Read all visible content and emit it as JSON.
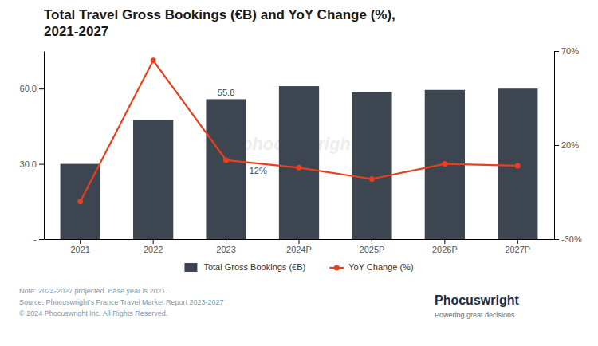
{
  "chart_data": {
    "type": "bar",
    "title": "Total Travel Gross Bookings (€B) and YoY Change (%),\n2021-2027",
    "categories": [
      "2021",
      "2022",
      "2023",
      "2024P",
      "2025P",
      "2026P",
      "2027P"
    ],
    "series": [
      {
        "name": "Total Gross Bookings (€B)",
        "type": "bar",
        "color": "#3d4550",
        "values": [
          30.0,
          47.5,
          55.8,
          61.0,
          58.5,
          59.5,
          60.0
        ],
        "value_labels": [
          null,
          null,
          "55.8",
          null,
          null,
          null,
          null
        ]
      },
      {
        "name": "YoY Change (%)",
        "type": "line",
        "color": "#e8401c",
        "axis": "y2",
        "marker": "circle",
        "values": [
          -10,
          65,
          12,
          8,
          2,
          10,
          9
        ],
        "value_labels": [
          null,
          null,
          "12%",
          null,
          null,
          null,
          null
        ]
      }
    ],
    "ylim": [
      0,
      75
    ],
    "yticks": [
      {
        "value": 0,
        "label": "-"
      },
      {
        "value": 30.0,
        "label": "30.0"
      },
      {
        "value": 60.0,
        "label": "60.0"
      }
    ],
    "y2lim": [
      -30,
      70
    ],
    "y2ticks": [
      {
        "value": -30,
        "label": "-30%"
      },
      {
        "value": 20,
        "label": "20%"
      },
      {
        "value": 70,
        "label": "70%"
      }
    ],
    "grid": false,
    "legend": "bottom",
    "watermark": "phocuswright",
    "notes": [
      "Note: 2024-2027 projected. Base year is 2021.",
      "Source: Phocuswright’s France Travel Market Report 2023-2027",
      "© 2024 Phocuswright Inc. All Rights Reserved."
    ],
    "branding": [
      "Phocuswright",
      "Powering great decisions."
    ]
  }
}
